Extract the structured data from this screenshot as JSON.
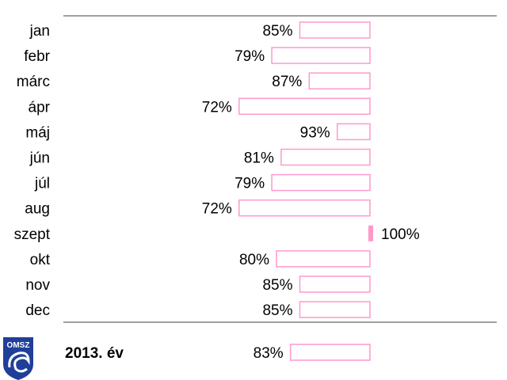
{
  "chart_data": {
    "type": "bar",
    "orientation": "horizontal",
    "categories": [
      "jan",
      "febr",
      "márc",
      "ápr",
      "máj",
      "jún",
      "júl",
      "aug",
      "szept",
      "okt",
      "nov",
      "dec"
    ],
    "values": [
      85,
      79,
      87,
      72,
      93,
      81,
      79,
      72,
      100,
      80,
      85,
      85
    ],
    "value_labels": [
      "85%",
      "79%",
      "87%",
      "72%",
      "93%",
      "81%",
      "79%",
      "72%",
      "100%",
      "80%",
      "85%",
      "85%"
    ],
    "summary": {
      "label": "2013. év",
      "value": 83,
      "value_label": "83%"
    },
    "bar_encoding": "bar length shows shortfall from 100%, extending left from a common right edge",
    "bar_color": "#ff99cc",
    "grid": false
  },
  "logo": {
    "text": "OMSZ",
    "color": "#1f3f99"
  }
}
